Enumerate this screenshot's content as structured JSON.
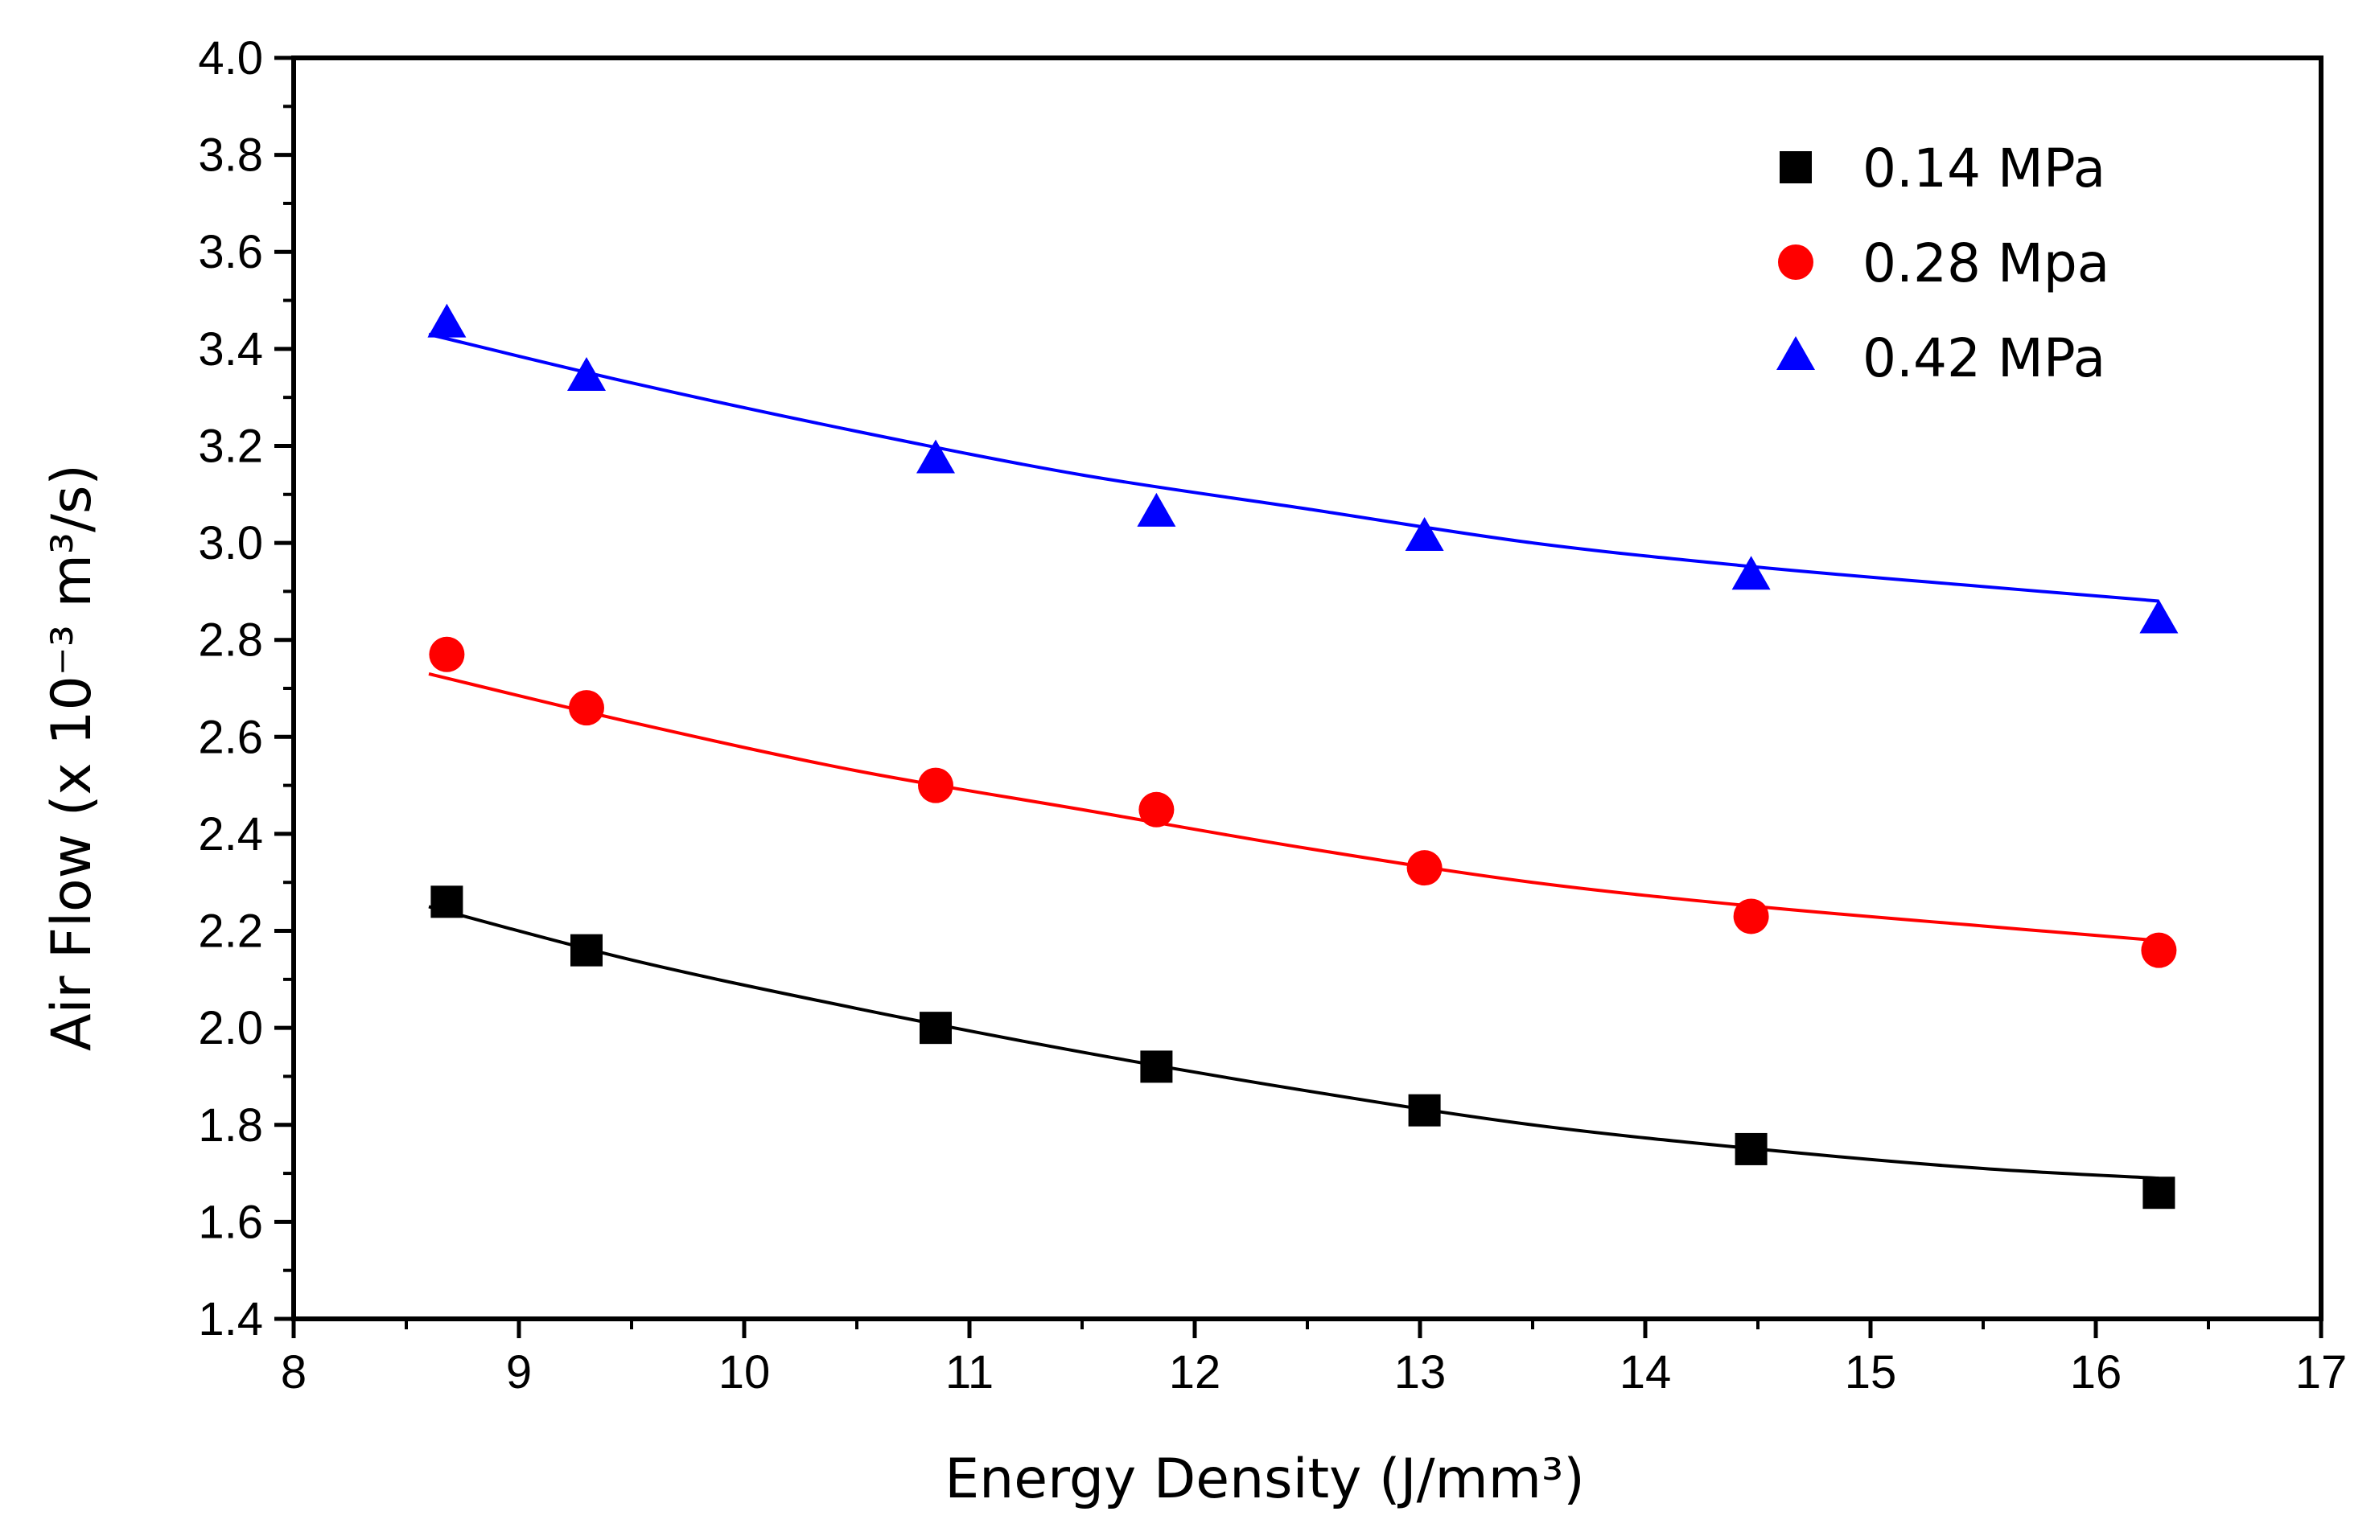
{
  "chart_data": {
    "type": "scatter",
    "title": "",
    "xlabel": "Energy Density (J/mm³)",
    "ylabel": "Air Flow (x 10⁻³ m³/s)",
    "xlim": [
      8,
      17
    ],
    "ylim": [
      1.4,
      4.0
    ],
    "x_ticks": [
      "8",
      "9",
      "10",
      "11",
      "12",
      "13",
      "14",
      "15",
      "16",
      "17"
    ],
    "y_ticks": [
      "1.4",
      "1.6",
      "1.8",
      "2.0",
      "2.2",
      "2.4",
      "2.6",
      "2.8",
      "3.0",
      "3.2",
      "3.4",
      "3.6",
      "3.8",
      "4.0"
    ],
    "grid": false,
    "legend_position": "top-right",
    "series": [
      {
        "name": "0.14 MPa",
        "marker": "square",
        "color": "#000000",
        "x": [
          8.68,
          9.3,
          10.85,
          11.83,
          13.02,
          14.47,
          16.28
        ],
        "y": [
          2.26,
          2.16,
          2.0,
          1.92,
          1.83,
          1.75,
          1.66
        ],
        "fit": {
          "x": [
            8.6,
            9.5,
            10.5,
            11.5,
            12.5,
            13.5,
            14.5,
            15.5,
            16.28
          ],
          "y": [
            2.25,
            2.14,
            2.04,
            1.95,
            1.87,
            1.8,
            1.75,
            1.71,
            1.69
          ]
        }
      },
      {
        "name": "0.28 Mpa",
        "marker": "circle",
        "color": "#ff0000",
        "x": [
          8.68,
          9.3,
          10.85,
          11.83,
          13.02,
          14.47,
          16.28
        ],
        "y": [
          2.77,
          2.66,
          2.5,
          2.45,
          2.33,
          2.23,
          2.16
        ],
        "fit": {
          "x": [
            8.6,
            9.5,
            10.5,
            11.5,
            12.5,
            13.5,
            14.5,
            15.5,
            16.28
          ],
          "y": [
            2.73,
            2.63,
            2.53,
            2.45,
            2.37,
            2.3,
            2.25,
            2.21,
            2.18
          ]
        }
      },
      {
        "name": "0.42 MPa",
        "marker": "triangle",
        "color": "#0000ff",
        "x": [
          8.68,
          9.3,
          10.85,
          11.83,
          13.02,
          14.47,
          16.28
        ],
        "y": [
          3.45,
          3.34,
          3.17,
          3.06,
          3.01,
          2.93,
          2.84
        ],
        "fit": {
          "x": [
            8.6,
            9.5,
            10.5,
            11.5,
            12.5,
            13.5,
            14.5,
            15.5,
            16.28
          ],
          "y": [
            3.43,
            3.33,
            3.23,
            3.14,
            3.07,
            3.0,
            2.95,
            2.91,
            2.88
          ]
        }
      }
    ]
  }
}
